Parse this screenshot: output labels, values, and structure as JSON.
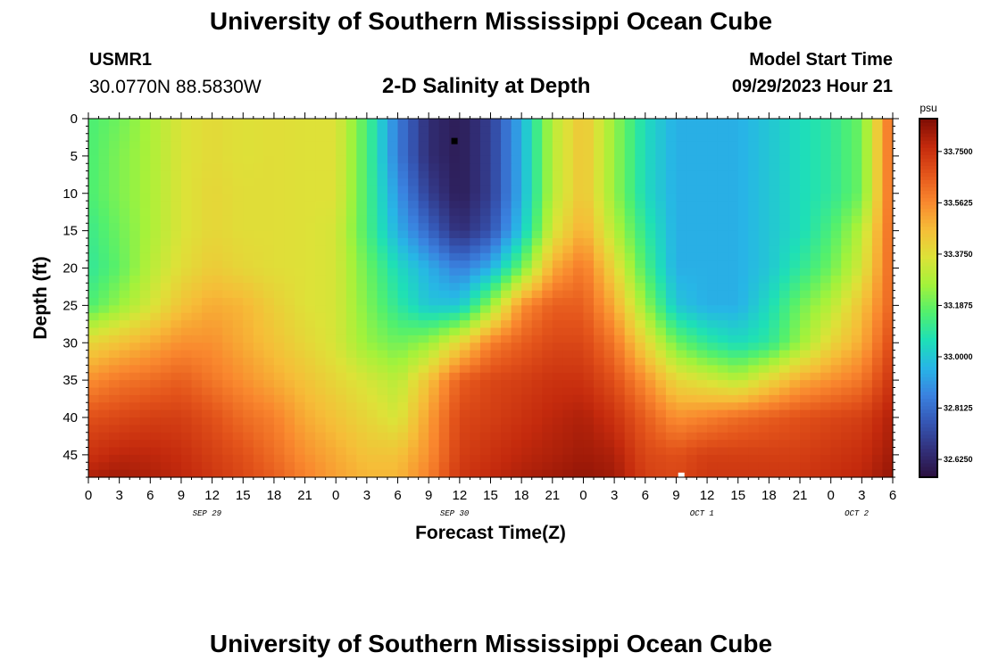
{
  "header": {
    "title": "University of Southern Mississippi Ocean Cube",
    "station_id": "USMR1",
    "coordinates": "30.0770N  88.5830W",
    "subtitle": "2-D Salinity at Depth",
    "start_label": "Model Start Time",
    "start_value": "09/29/2023 Hour 21"
  },
  "footer": {
    "title": "University of Southern Mississippi Ocean Cube"
  },
  "chart_data": {
    "type": "heatmap",
    "title": "2-D Salinity at Depth",
    "xlabel": "Forecast Time(Z)",
    "ylabel": "Depth (ft)",
    "x_range_hours": [
      0,
      78
    ],
    "y_range_ft": [
      0,
      48
    ],
    "x_tick_labels": [
      "0",
      "3",
      "6",
      "9",
      "12",
      "15",
      "18",
      "21",
      "0",
      "3",
      "6",
      "9",
      "12",
      "15",
      "18",
      "21",
      "0",
      "3",
      "6",
      "9",
      "12",
      "15",
      "18",
      "21",
      "0",
      "3",
      "6"
    ],
    "y_ticks": [
      0,
      5,
      10,
      15,
      20,
      25,
      30,
      35,
      40,
      45
    ],
    "date_labels": [
      {
        "text": "SEP 29",
        "hour": 11.5
      },
      {
        "text": "SEP 30",
        "hour": 35.5
      },
      {
        "text": "OCT 1",
        "hour": 59.5
      },
      {
        "text": "OCT 2",
        "hour": 74.5
      }
    ],
    "colorbar": {
      "unit": "psu",
      "vmin": 32.56,
      "vmax": 33.87,
      "ticks": [
        {
          "value": 33.75,
          "label": "33.7500"
        },
        {
          "value": 33.5625,
          "label": "33.5625"
        },
        {
          "value": 33.375,
          "label": "33.3750"
        },
        {
          "value": 33.1875,
          "label": "33.1875"
        },
        {
          "value": 33.0,
          "label": "33.0000"
        },
        {
          "value": 32.8125,
          "label": "32.8125"
        },
        {
          "value": 32.625,
          "label": "32.6250"
        }
      ],
      "colors": [
        "#2a0f3d",
        "#32307a",
        "#3556b4",
        "#3a82e0",
        "#27b6e6",
        "#1ee0b6",
        "#52f06d",
        "#a4f23a",
        "#dde238",
        "#f6bd38",
        "#f9872e",
        "#e4551b",
        "#c42a0d",
        "#7e0d04"
      ]
    },
    "markers": [
      {
        "hour": 35.5,
        "depth_ft": 3,
        "color": "#000000"
      },
      {
        "hour": 57.5,
        "depth_ft": 47.8,
        "color": "#ffffff"
      }
    ],
    "salinity_grid": {
      "hours": [
        0,
        3,
        6,
        9,
        12,
        15,
        18,
        21,
        24,
        27,
        30,
        33,
        36,
        39,
        42,
        45,
        48,
        51,
        54,
        57,
        60,
        63,
        66,
        69,
        72,
        75,
        78
      ],
      "depths_ft": [
        0,
        5,
        10,
        15,
        20,
        25,
        30,
        35,
        40,
        45,
        48
      ],
      "values_psu": [
        [
          33.15,
          33.2,
          33.28,
          33.36,
          33.39,
          33.37,
          33.38,
          33.37,
          33.37,
          33.15,
          32.85,
          32.65,
          32.6,
          32.7,
          32.95,
          33.3,
          33.45,
          33.25,
          33.05,
          32.95,
          32.95,
          32.95,
          33.0,
          33.05,
          33.1,
          33.2,
          33.65
        ],
        [
          33.15,
          33.22,
          33.28,
          33.36,
          33.39,
          33.37,
          33.38,
          33.37,
          33.37,
          33.15,
          32.85,
          32.65,
          32.6,
          32.7,
          32.95,
          33.3,
          33.45,
          33.25,
          33.05,
          32.95,
          32.95,
          32.95,
          33.0,
          33.05,
          33.1,
          33.2,
          33.65
        ],
        [
          33.15,
          33.22,
          33.28,
          33.36,
          33.4,
          33.38,
          33.38,
          33.37,
          33.37,
          33.15,
          32.9,
          32.7,
          32.6,
          32.7,
          32.95,
          33.3,
          33.45,
          33.25,
          33.05,
          32.95,
          32.95,
          32.95,
          33.0,
          33.05,
          33.1,
          33.2,
          33.65
        ],
        [
          33.12,
          33.2,
          33.28,
          33.36,
          33.4,
          33.38,
          33.38,
          33.37,
          33.35,
          33.15,
          32.95,
          32.8,
          32.65,
          32.75,
          33.0,
          33.35,
          33.5,
          33.3,
          33.1,
          32.95,
          32.95,
          32.95,
          33.0,
          33.05,
          33.15,
          33.3,
          33.65
        ],
        [
          33.1,
          33.18,
          33.3,
          33.38,
          33.43,
          33.4,
          33.38,
          33.37,
          33.35,
          33.2,
          33.05,
          32.95,
          32.85,
          32.95,
          33.2,
          33.5,
          33.6,
          33.4,
          33.15,
          32.95,
          32.95,
          32.95,
          33.0,
          33.1,
          33.2,
          33.35,
          33.65
        ],
        [
          33.15,
          33.25,
          33.35,
          33.45,
          33.5,
          33.48,
          33.42,
          33.37,
          33.35,
          33.22,
          33.1,
          33.0,
          33.0,
          33.25,
          33.55,
          33.65,
          33.65,
          33.5,
          33.25,
          33.0,
          32.95,
          32.95,
          33.05,
          33.2,
          33.3,
          33.45,
          33.65
        ],
        [
          33.4,
          33.45,
          33.5,
          33.55,
          33.55,
          33.5,
          33.45,
          33.4,
          33.35,
          33.25,
          33.2,
          33.25,
          33.4,
          33.58,
          33.65,
          33.7,
          33.7,
          33.6,
          33.4,
          33.2,
          33.1,
          33.05,
          33.1,
          33.25,
          33.4,
          33.5,
          33.7
        ],
        [
          33.55,
          33.6,
          33.62,
          33.65,
          33.6,
          33.55,
          33.5,
          33.45,
          33.4,
          33.35,
          33.3,
          33.45,
          33.65,
          33.7,
          33.72,
          33.75,
          33.75,
          33.68,
          33.55,
          33.4,
          33.35,
          33.3,
          33.4,
          33.5,
          33.55,
          33.6,
          33.75
        ],
        [
          33.68,
          33.7,
          33.72,
          33.72,
          33.68,
          33.62,
          33.58,
          33.5,
          33.45,
          33.4,
          33.35,
          33.52,
          33.7,
          33.72,
          33.75,
          33.78,
          33.8,
          33.75,
          33.65,
          33.55,
          33.58,
          33.62,
          33.65,
          33.68,
          33.7,
          33.72,
          33.8
        ],
        [
          33.75,
          33.78,
          33.78,
          33.76,
          33.72,
          33.68,
          33.62,
          33.55,
          33.5,
          33.45,
          33.45,
          33.55,
          33.72,
          33.75,
          33.78,
          33.8,
          33.82,
          33.8,
          33.7,
          33.68,
          33.72,
          33.72,
          33.72,
          33.72,
          33.74,
          33.76,
          33.82
        ],
        [
          33.8,
          33.82,
          33.8,
          33.78,
          33.74,
          33.7,
          33.65,
          33.58,
          33.52,
          33.48,
          33.48,
          33.58,
          33.74,
          33.77,
          33.8,
          33.82,
          33.84,
          33.82,
          33.72,
          33.7,
          33.74,
          33.74,
          33.74,
          33.74,
          33.76,
          33.78,
          33.84
        ]
      ]
    }
  }
}
